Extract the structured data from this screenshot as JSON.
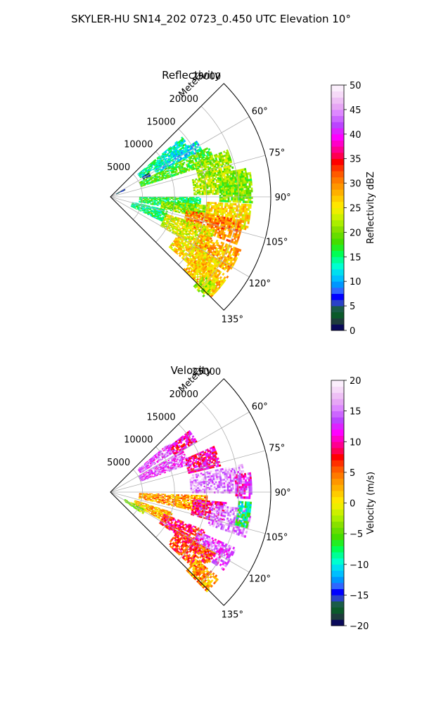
{
  "figure_title": "SKYLER-HU  SN14_202  0723_0.450 UTC Elevation 10°",
  "chart_data": [
    {
      "type": "heatmap",
      "projection": "polar-sector",
      "title": "Reflectivity",
      "radial_axis_label": "Meters",
      "radial_ticks": [
        5000,
        10000,
        15000,
        20000,
        25000
      ],
      "radial_tick_labels": [
        "5000",
        "10000",
        "15000",
        "20000",
        "25000"
      ],
      "radial_range": [
        0,
        25000
      ],
      "azimuth_range_deg": [
        45,
        135
      ],
      "azimuth_ticks_deg": [
        60,
        75,
        90,
        105,
        120,
        135
      ],
      "azimuth_tick_labels": [
        "60°",
        "75°",
        "90°",
        "105°",
        "120°",
        "135°"
      ],
      "grid": true,
      "colorbar": {
        "label": "Reflectivity dBZ",
        "range": [
          0,
          50
        ],
        "ticks": [
          0,
          5,
          10,
          15,
          20,
          25,
          30,
          35,
          40,
          45,
          50
        ],
        "tick_labels": [
          "0",
          "5",
          "10",
          "15",
          "20",
          "25",
          "30",
          "35",
          "40",
          "45",
          "50"
        ],
        "palette": [
          "#0a0a5a",
          "#1e3c3c",
          "#0b5a2a",
          "#1a5c48",
          "#2b42c8",
          "#0000ff",
          "#2f66ff",
          "#0096ff",
          "#00bfff",
          "#00dff0",
          "#00ffd0",
          "#00ff96",
          "#00ff55",
          "#22ee22",
          "#44dd00",
          "#66dd00",
          "#88e000",
          "#aaee00",
          "#ccf000",
          "#eeee00",
          "#ffe600",
          "#ffcc00",
          "#ffb000",
          "#ff9600",
          "#ff7a00",
          "#ff5a00",
          "#ff3000",
          "#ff0000",
          "#ff0050",
          "#ff0090",
          "#ff00c8",
          "#ff00ff",
          "#dd22ff",
          "#bb44ff",
          "#cc66ff",
          "#dd88ff",
          "#e6a6f5",
          "#eec0f5",
          "#f6daf8",
          "#fbeefc"
        ]
      },
      "echo_cells": [
        {
          "az": [
            50,
            58
          ],
          "r": [
            5500,
            14500
          ],
          "value": 14
        },
        {
          "az": [
            57,
            63
          ],
          "r": [
            8000,
            16000
          ],
          "value": 12
        },
        {
          "az": [
            63,
            72
          ],
          "r": [
            5000,
            17000
          ],
          "value": 18
        },
        {
          "az": [
            68,
            78
          ],
          "r": [
            14000,
            19500
          ],
          "value": 21
        },
        {
          "az": [
            78,
            88
          ],
          "r": [
            13000,
            21500
          ],
          "value": 22
        },
        {
          "az": [
            80,
            92
          ],
          "r": [
            17000,
            22000
          ],
          "value": 20
        },
        {
          "az": [
            90,
            100
          ],
          "r": [
            4500,
            14000
          ],
          "value": 16
        },
        {
          "az": [
            95,
            103
          ],
          "r": [
            8000,
            15500
          ],
          "value": 21
        },
        {
          "az": [
            93,
            103
          ],
          "r": [
            15000,
            22000
          ],
          "value": 26
        },
        {
          "az": [
            100,
            110
          ],
          "r": [
            12000,
            21000
          ],
          "value": 30
        },
        {
          "az": [
            103,
            115
          ],
          "r": [
            3500,
            9000
          ],
          "value": 15
        },
        {
          "az": [
            107,
            120
          ],
          "r": [
            9000,
            17000
          ],
          "value": 24
        },
        {
          "az": [
            112,
            122
          ],
          "r": [
            15000,
            22000
          ],
          "value": 28
        },
        {
          "az": [
            120,
            130
          ],
          "r": [
            12000,
            20000
          ],
          "value": 26
        },
        {
          "az": [
            124,
            134
          ],
          "r": [
            16000,
            22000
          ],
          "value": 27
        },
        {
          "az": [
            130,
            137
          ],
          "r": [
            19000,
            21500
          ],
          "value": 22
        },
        {
          "az": [
            60,
            66
          ],
          "r": [
            1000,
            2500
          ],
          "value": 6
        },
        {
          "az": [
            58,
            62
          ],
          "r": [
            5800,
            7000
          ],
          "value": 4
        }
      ]
    },
    {
      "type": "heatmap",
      "projection": "polar-sector",
      "title": "Velocity",
      "radial_axis_label": "Meters",
      "radial_ticks": [
        5000,
        10000,
        15000,
        20000,
        25000
      ],
      "radial_tick_labels": [
        "5000",
        "10000",
        "15000",
        "20000",
        "25000"
      ],
      "radial_range": [
        0,
        25000
      ],
      "azimuth_range_deg": [
        45,
        135
      ],
      "azimuth_ticks_deg": [
        60,
        75,
        90,
        105,
        120,
        135
      ],
      "azimuth_tick_labels": [
        "60°",
        "75°",
        "90°",
        "105°",
        "120°",
        "135°"
      ],
      "grid": true,
      "colorbar": {
        "label": "Velocity (m/s)",
        "range": [
          -20,
          20
        ],
        "ticks": [
          -20,
          -15,
          -10,
          -5,
          0,
          5,
          10,
          15,
          20
        ],
        "tick_labels": [
          "−20",
          "−15",
          "−10",
          "−5",
          "0",
          "5",
          "10",
          "15",
          "20"
        ],
        "palette": [
          "#0a0a5a",
          "#1e3c3c",
          "#0b5a2a",
          "#1a5c48",
          "#2b42c8",
          "#0000ff",
          "#2f66ff",
          "#0096ff",
          "#00bfff",
          "#00dff0",
          "#00ffd0",
          "#00ff96",
          "#00ff55",
          "#22ee22",
          "#44dd00",
          "#66dd00",
          "#88e000",
          "#aaee00",
          "#ccf000",
          "#eeee00",
          "#ffe600",
          "#ffcc00",
          "#ffb000",
          "#ff9600",
          "#ff7a00",
          "#ff5a00",
          "#ff3000",
          "#ff0000",
          "#ff0050",
          "#ff0090",
          "#ff00c8",
          "#ff00ff",
          "#dd22ff",
          "#bb44ff",
          "#cc66ff",
          "#dd88ff",
          "#e6a6f5",
          "#eec0f5",
          "#f6daf8",
          "#fbeefc"
        ]
      },
      "echo_cells": [
        {
          "az": [
            50,
            58
          ],
          "r": [
            5500,
            12000
          ],
          "value": 14
        },
        {
          "az": [
            52,
            60
          ],
          "r": [
            11500,
            15500
          ],
          "value": 10
        },
        {
          "az": [
            60,
            70
          ],
          "r": [
            5000,
            13000
          ],
          "value": 14
        },
        {
          "az": [
            66,
            76
          ],
          "r": [
            12500,
            17500
          ],
          "value": 10
        },
        {
          "az": [
            78,
            90
          ],
          "r": [
            12500,
            21000
          ],
          "value": 16
        },
        {
          "az": [
            82,
            92
          ],
          "r": [
            19500,
            22000
          ],
          "value": 12
        },
        {
          "az": [
            92,
            102
          ],
          "r": [
            4500,
            15000
          ],
          "value": 3
        },
        {
          "az": [
            95,
            105
          ],
          "r": [
            13000,
            18000
          ],
          "value": 10
        },
        {
          "az": [
            97,
            108
          ],
          "r": [
            16000,
            22000
          ],
          "value": 16
        },
        {
          "az": [
            108,
            118
          ],
          "r": [
            4000,
            10000
          ],
          "value": 2
        },
        {
          "az": [
            112,
            122
          ],
          "r": [
            9000,
            16000
          ],
          "value": 8
        },
        {
          "az": [
            114,
            124
          ],
          "r": [
            15000,
            21500
          ],
          "value": 14
        },
        {
          "az": [
            120,
            132
          ],
          "r": [
            12000,
            19000
          ],
          "value": 6
        },
        {
          "az": [
            128,
            136
          ],
          "r": [
            17000,
            21500
          ],
          "value": 3
        },
        {
          "az": [
            116,
            124
          ],
          "r": [
            2500,
            6000
          ],
          "value": -3
        },
        {
          "az": [
            94,
            104
          ],
          "r": [
            20000,
            22000
          ],
          "value": -8
        }
      ]
    }
  ]
}
